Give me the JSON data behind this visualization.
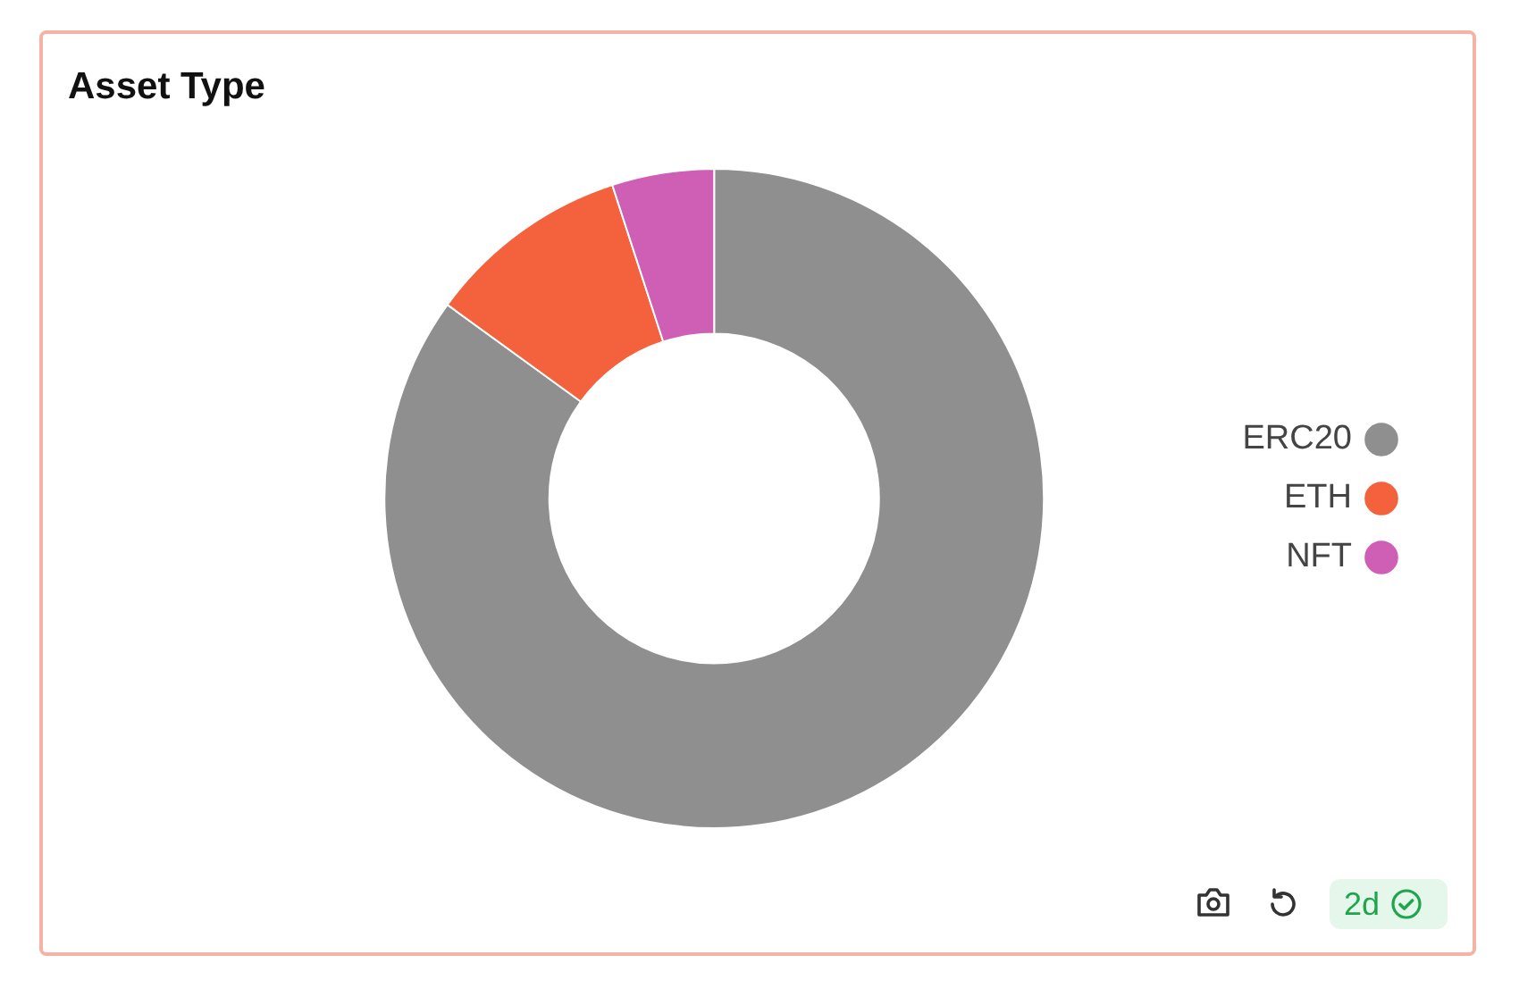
{
  "chart_data": {
    "type": "donut",
    "title": "Asset Type",
    "categories": [
      "ERC20",
      "ETH",
      "NFT"
    ],
    "values": [
      85,
      10,
      5
    ],
    "colors": [
      "#8f8f8f",
      "#f4613d",
      "#cf5fb5"
    ],
    "legend": "right",
    "annotations": [
      "2d"
    ]
  }
}
